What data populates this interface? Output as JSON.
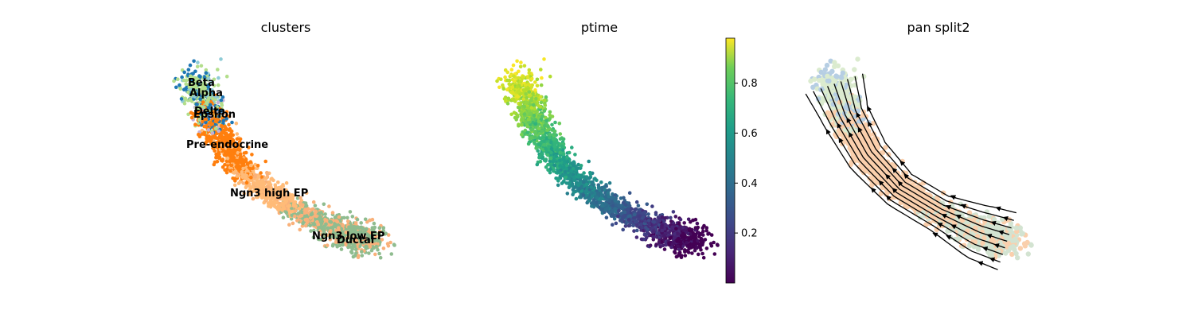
{
  "chart_data": [
    {
      "type": "scatter",
      "title": "clusters",
      "xlabel": "",
      "ylabel": "",
      "legend": "on data",
      "categories": [
        {
          "name": "Beta",
          "color": "#b3de8c"
        },
        {
          "name": "Alpha",
          "color": "#1f77b4"
        },
        {
          "name": "Delta",
          "color": "#8ecbd6"
        },
        {
          "name": "Epsilon",
          "color": "#c5b0d5"
        },
        {
          "name": "Pre-endocrine",
          "color": "#ff7f0e"
        },
        {
          "name": "Ngn3 high EP",
          "color": "#ffbb78"
        },
        {
          "name": "Ngn3 low EP",
          "color": "#f9b17a"
        },
        {
          "name": "Ductal",
          "color": "#8fbc8f"
        }
      ],
      "labels": [
        "Beta",
        "Alpha",
        "Delta",
        "Epsilon",
        "Pre-endocrine",
        "Ngn3 high EP",
        "Ngn3 low EP",
        "Ductal"
      ]
    },
    {
      "type": "scatter",
      "title": "ptime",
      "colorscale": "viridis",
      "colorbar": {
        "range": [
          0,
          0.98
        ],
        "ticks": [
          0.2,
          0.4,
          0.6,
          0.8
        ],
        "tick_labels": [
          "0.2",
          "0.4",
          "0.6",
          "0.8"
        ]
      }
    },
    {
      "type": "scatter",
      "title": "pan split2",
      "overlay": "velocity streamlines"
    }
  ]
}
